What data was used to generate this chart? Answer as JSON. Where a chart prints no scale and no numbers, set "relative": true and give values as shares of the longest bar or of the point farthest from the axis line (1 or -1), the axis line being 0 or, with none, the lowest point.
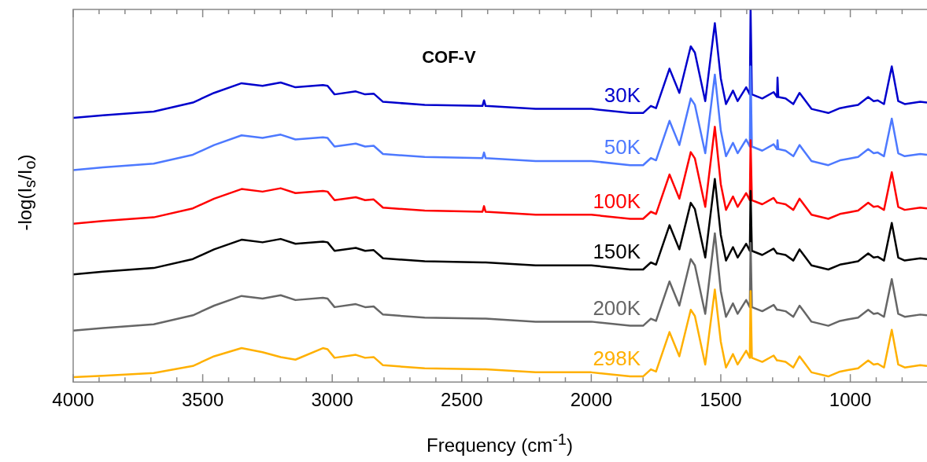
{
  "chart_data": {
    "type": "line",
    "title": "COF-V",
    "xlabel": "Frequency (cm$^{-1}$)",
    "ylabel": "-log(I$_{s}$/I$_{o}$)",
    "relative": true,
    "legend": false,
    "grid": false,
    "marker": "none",
    "line_style": "solid",
    "tick_labels": "x",
    "xlim": [
      4000,
      704
    ],
    "xticks": [
      4000,
      {
        "value": 3900,
        "label": null
      },
      {
        "value": 3800,
        "label": null
      },
      {
        "value": 3700,
        "label": null
      },
      {
        "value": 3600,
        "label": null
      },
      3500,
      {
        "value": 3400,
        "label": null
      },
      {
        "value": 3300,
        "label": null
      },
      {
        "value": 3200,
        "label": null
      },
      {
        "value": 3100,
        "label": null
      },
      3000,
      {
        "value": 2900,
        "label": null
      },
      {
        "value": 2800,
        "label": null
      },
      {
        "value": 2700,
        "label": null
      },
      {
        "value": 2600,
        "label": null
      },
      2500,
      {
        "value": 2400,
        "label": null
      },
      {
        "value": 2300,
        "label": null
      },
      {
        "value": 2200,
        "label": null
      },
      {
        "value": 2100,
        "label": null
      },
      2000,
      {
        "value": 1900,
        "label": null
      },
      {
        "value": 1800,
        "label": null
      },
      {
        "value": 1700,
        "label": null
      },
      {
        "value": 1600,
        "label": null
      },
      1500,
      {
        "value": 1400,
        "label": null
      },
      {
        "value": 1300,
        "label": null
      },
      {
        "value": 1200,
        "label": null
      },
      {
        "value": 1100,
        "label": null
      },
      1000,
      {
        "value": 900,
        "label": null
      },
      {
        "value": 800,
        "label": null
      }
    ],
    "x": [
      4000,
      3885,
      3689,
      3538,
      3456,
      3350,
      3269,
      3199,
      3142,
      3036,
      3018,
      2991,
      2909,
      2873,
      2840,
      2804,
      2643,
      2420,
      2414,
      2408,
      2215,
      2000,
      1850,
      1800,
      1770,
      1750,
      1698,
      1660,
      1616,
      1600,
      1560,
      1523,
      1500,
      1480,
      1453,
      1435,
      1402,
      1388,
      1385,
      1380,
      1340,
      1296,
      1283,
      1281,
      1278,
      1250,
      1220,
      1196,
      1180,
      1150,
      1085,
      1040,
      1010,
      970,
      931,
      910,
      894,
      870,
      840,
      815,
      790,
      730,
      704
    ],
    "series": [
      {
        "name": "30K",
        "color": "#0000cc",
        "values": [
          0.709,
          0.716,
          0.726,
          0.75,
          0.776,
          0.802,
          0.795,
          0.804,
          0.791,
          0.797,
          0.795,
          0.772,
          0.78,
          0.772,
          0.774,
          0.752,
          0.744,
          0.741,
          0.756,
          0.741,
          0.733,
          0.733,
          0.722,
          0.722,
          0.741,
          0.735,
          0.841,
          0.776,
          0.901,
          0.884,
          0.754,
          0.963,
          0.815,
          0.746,
          0.782,
          0.754,
          0.791,
          0.772,
          1.0,
          0.772,
          0.761,
          0.778,
          0.765,
          0.817,
          0.765,
          0.761,
          0.746,
          0.776,
          0.761,
          0.733,
          0.722,
          0.735,
          0.739,
          0.744,
          0.765,
          0.754,
          0.756,
          0.746,
          0.847,
          0.754,
          0.746,
          0.752,
          0.75
        ]
      },
      {
        "name": "50K",
        "color": "#4d79ff",
        "values": [
          0.569,
          0.576,
          0.586,
          0.61,
          0.636,
          0.662,
          0.655,
          0.664,
          0.651,
          0.657,
          0.655,
          0.632,
          0.64,
          0.632,
          0.634,
          0.612,
          0.604,
          0.601,
          0.616,
          0.601,
          0.593,
          0.593,
          0.582,
          0.582,
          0.601,
          0.595,
          0.701,
          0.636,
          0.761,
          0.744,
          0.614,
          0.825,
          0.675,
          0.606,
          0.642,
          0.614,
          0.651,
          0.632,
          0.847,
          0.632,
          0.621,
          0.638,
          0.625,
          0.649,
          0.625,
          0.621,
          0.606,
          0.636,
          0.621,
          0.593,
          0.582,
          0.595,
          0.599,
          0.604,
          0.625,
          0.614,
          0.616,
          0.606,
          0.707,
          0.614,
          0.606,
          0.612,
          0.61
        ]
      },
      {
        "name": "100K",
        "color": "#ff0000",
        "values": [
          0.425,
          0.432,
          0.442,
          0.466,
          0.492,
          0.518,
          0.511,
          0.52,
          0.507,
          0.513,
          0.511,
          0.488,
          0.496,
          0.488,
          0.49,
          0.468,
          0.46,
          0.457,
          0.472,
          0.457,
          0.449,
          0.449,
          0.438,
          0.438,
          0.457,
          0.451,
          0.557,
          0.492,
          0.617,
          0.6,
          0.47,
          0.685,
          0.531,
          0.462,
          0.498,
          0.47,
          0.507,
          0.488,
          0.649,
          0.488,
          0.477,
          0.494,
          0.481,
          0.481,
          0.481,
          0.477,
          0.462,
          0.492,
          0.477,
          0.449,
          0.438,
          0.451,
          0.455,
          0.46,
          0.481,
          0.47,
          0.472,
          0.462,
          0.563,
          0.47,
          0.462,
          0.468,
          0.466
        ]
      },
      {
        "name": "150K",
        "color": "#000000",
        "values": [
          0.289,
          0.296,
          0.306,
          0.33,
          0.356,
          0.382,
          0.375,
          0.384,
          0.371,
          0.377,
          0.375,
          0.352,
          0.36,
          0.352,
          0.354,
          0.332,
          0.324,
          0.321,
          0.321,
          0.321,
          0.313,
          0.313,
          0.302,
          0.302,
          0.321,
          0.315,
          0.421,
          0.356,
          0.481,
          0.464,
          0.334,
          0.545,
          0.395,
          0.326,
          0.362,
          0.334,
          0.371,
          0.352,
          0.513,
          0.352,
          0.341,
          0.358,
          0.345,
          0.345,
          0.345,
          0.341,
          0.326,
          0.356,
          0.341,
          0.313,
          0.302,
          0.315,
          0.319,
          0.324,
          0.345,
          0.334,
          0.336,
          0.326,
          0.427,
          0.334,
          0.326,
          0.332,
          0.33
        ]
      },
      {
        "name": "200K",
        "color": "#666666",
        "values": [
          0.138,
          0.145,
          0.155,
          0.179,
          0.205,
          0.231,
          0.224,
          0.233,
          0.22,
          0.226,
          0.224,
          0.201,
          0.209,
          0.201,
          0.203,
          0.181,
          0.173,
          0.17,
          0.17,
          0.17,
          0.162,
          0.162,
          0.151,
          0.151,
          0.17,
          0.164,
          0.27,
          0.205,
          0.33,
          0.313,
          0.183,
          0.399,
          0.244,
          0.175,
          0.211,
          0.183,
          0.22,
          0.201,
          0.373,
          0.201,
          0.19,
          0.207,
          0.194,
          0.194,
          0.194,
          0.19,
          0.175,
          0.205,
          0.19,
          0.162,
          0.151,
          0.164,
          0.168,
          0.173,
          0.194,
          0.183,
          0.185,
          0.175,
          0.276,
          0.183,
          0.175,
          0.181,
          0.179
        ]
      },
      {
        "name": "298K",
        "color": "#ffb000",
        "values": [
          0.013,
          0.017,
          0.024,
          0.043,
          0.069,
          0.091,
          0.08,
          0.067,
          0.06,
          0.091,
          0.088,
          0.065,
          0.073,
          0.065,
          0.067,
          0.045,
          0.037,
          0.034,
          0.034,
          0.034,
          0.026,
          0.026,
          0.015,
          0.015,
          0.034,
          0.028,
          0.134,
          0.069,
          0.194,
          0.177,
          0.047,
          0.248,
          0.108,
          0.039,
          0.075,
          0.047,
          0.084,
          0.065,
          0.244,
          0.065,
          0.054,
          0.071,
          0.058,
          0.058,
          0.058,
          0.054,
          0.039,
          0.069,
          0.054,
          0.026,
          0.015,
          0.028,
          0.032,
          0.037,
          0.058,
          0.047,
          0.049,
          0.039,
          0.14,
          0.047,
          0.039,
          0.045,
          0.043
        ]
      }
    ]
  }
}
